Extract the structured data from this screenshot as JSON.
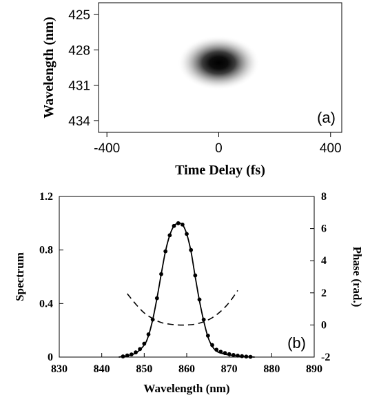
{
  "chart_data": [
    {
      "panel": "(a)",
      "type": "heatmap",
      "xlabel": "Time Delay (fs)",
      "ylabel": "Wavelength (nm)",
      "xlim": [
        -430,
        440
      ],
      "ylim": [
        424,
        435
      ],
      "y_inverted": true,
      "xticks": [
        -400,
        0,
        400
      ],
      "yticks": [
        425,
        428,
        431,
        434
      ],
      "xtick_labels": [
        "-400",
        "0",
        "400"
      ],
      "ytick_labels": [
        "425",
        "428",
        "431",
        "434"
      ],
      "blob": {
        "center_x": 0,
        "center_y": 429.1,
        "sigma_x": 95,
        "sigma_y": 1.6,
        "peak_intensity": 1.0
      },
      "colormap": "gray (white = 0, black = max)"
    },
    {
      "panel": "(b)",
      "type": "line",
      "xlabel": "Wavelength (nm)",
      "ylabel": "Spectrum",
      "y2label": "Phase (rad.)",
      "xlim": [
        830,
        890
      ],
      "ylim": [
        0,
        1.2
      ],
      "y2lim": [
        -2,
        8
      ],
      "xticks": [
        830,
        840,
        850,
        860,
        870,
        880,
        890
      ],
      "yticks": [
        0,
        0.4,
        0.8,
        1.2
      ],
      "y2ticks": [
        -2,
        0,
        2,
        4,
        6,
        8
      ],
      "xtick_labels": [
        "830",
        "840",
        "850",
        "860",
        "870",
        "880",
        "890"
      ],
      "ytick_labels": [
        "0",
        "0.4",
        "0.8",
        "1.2"
      ],
      "y2tick_labels": [
        "-2",
        "0",
        "2",
        "4",
        "6",
        "8"
      ],
      "spectrum_curve": {
        "x": [
          844,
          846,
          848,
          850,
          851,
          852,
          853,
          854,
          855,
          856,
          857,
          858,
          859,
          860,
          861,
          862,
          863,
          864,
          865,
          866,
          867,
          868,
          870,
          872,
          874,
          876
        ],
        "y": [
          0.0,
          0.01,
          0.03,
          0.09,
          0.16,
          0.28,
          0.44,
          0.62,
          0.79,
          0.91,
          0.98,
          1.0,
          0.99,
          0.92,
          0.79,
          0.6,
          0.42,
          0.27,
          0.15,
          0.08,
          0.045,
          0.03,
          0.015,
          0.008,
          0.003,
          0.0
        ]
      },
      "spectrum_points": {
        "x": [
          845,
          846,
          847,
          848,
          849,
          850,
          851,
          852,
          853,
          854,
          855,
          856,
          857,
          858,
          859,
          860,
          861,
          862,
          863,
          864,
          865,
          866,
          867,
          868,
          869,
          870,
          871,
          872,
          873,
          874,
          875
        ],
        "y": [
          0.005,
          0.012,
          0.02,
          0.035,
          0.06,
          0.1,
          0.17,
          0.28,
          0.44,
          0.62,
          0.79,
          0.91,
          0.98,
          1.0,
          0.99,
          0.92,
          0.8,
          0.61,
          0.43,
          0.28,
          0.16,
          0.09,
          0.055,
          0.04,
          0.03,
          0.022,
          0.016,
          0.011,
          0.007,
          0.004,
          0.002
        ]
      },
      "phase_curve": {
        "axis": "right",
        "style": "dashed",
        "x": [
          846,
          848,
          850,
          852,
          854,
          856,
          858,
          860,
          862,
          864,
          866,
          868,
          870,
          872
        ],
        "y": [
          1.95,
          1.3,
          0.75,
          0.4,
          0.15,
          0.05,
          0.0,
          0.0,
          0.05,
          0.2,
          0.45,
          0.85,
          1.4,
          2.15
        ]
      }
    }
  ]
}
